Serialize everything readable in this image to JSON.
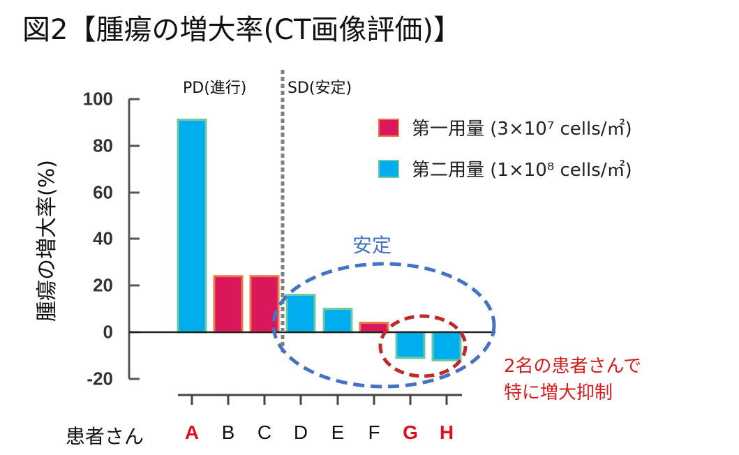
{
  "title": "図2【腫瘍の増大率(CT画像評価)】",
  "colors": {
    "dose1": "#d9175a",
    "dose1_border": "#e8774a",
    "dose2": "#00aeef",
    "dose2_border": "#6cc9a0",
    "stable_ellipse": "#4472c4",
    "highlight_ellipse": "#c0282a",
    "highlight_text": "#e0101a",
    "divider": "#808080"
  },
  "regions": {
    "pd_label": "PD(進行)",
    "sd_label": "SD(安定)"
  },
  "legend": [
    {
      "label": "第一用量 (3×10⁷ cells/㎡)",
      "series": "dose1"
    },
    {
      "label": "第二用量 (1×10⁸ cells/㎡)",
      "series": "dose2"
    }
  ],
  "annotations": {
    "stable": "安定",
    "suppressed_line1": "2名の患者さんで",
    "suppressed_line2": "特に増大抑制"
  },
  "axis": {
    "ylabel": "腫瘍の増大率(%)",
    "xlabel": "患者さん",
    "yticks": [
      "100",
      "80",
      "60",
      "40",
      "20",
      "0",
      "-20"
    ]
  },
  "chart_data": {
    "type": "bar",
    "title": "図2【腫瘍の増大率(CT画像評価)】",
    "xlabel": "患者さん",
    "ylabel": "腫瘍の増大率(%)",
    "categories": [
      "A",
      "B",
      "C",
      "D",
      "E",
      "F",
      "G",
      "H"
    ],
    "values": [
      91,
      24,
      24,
      16,
      10,
      4,
      -11,
      -12
    ],
    "series_assignment": [
      "第二用量",
      "第一用量",
      "第一用量",
      "第二用量",
      "第二用量",
      "第一用量",
      "第二用量",
      "第二用量"
    ],
    "series": [
      {
        "name": "第一用量 (3×10⁷ cells/㎡)",
        "values": [
          null,
          24,
          24,
          null,
          null,
          4,
          null,
          null
        ]
      },
      {
        "name": "第二用量 (1×10⁸ cells/㎡)",
        "values": [
          91,
          null,
          null,
          16,
          10,
          null,
          -11,
          -12
        ]
      }
    ],
    "highlighted_categories": [
      "A",
      "G",
      "H"
    ],
    "ylim": [
      -20,
      100
    ],
    "yticks": [
      100,
      80,
      60,
      40,
      20,
      0,
      -20
    ],
    "grid": false,
    "legend_position": "top-right",
    "annotations": [
      {
        "text": "PD(進行)",
        "region": [
          "A",
          "C"
        ]
      },
      {
        "text": "SD(安定)",
        "region": [
          "D",
          "H"
        ]
      },
      {
        "text": "安定",
        "shape": "blue dashed ellipse",
        "covers": [
          "D",
          "E",
          "F",
          "G",
          "H"
        ]
      },
      {
        "text": "2名の患者さんで特に増大抑制",
        "shape": "red dashed ellipse",
        "covers": [
          "G",
          "H"
        ]
      }
    ]
  }
}
